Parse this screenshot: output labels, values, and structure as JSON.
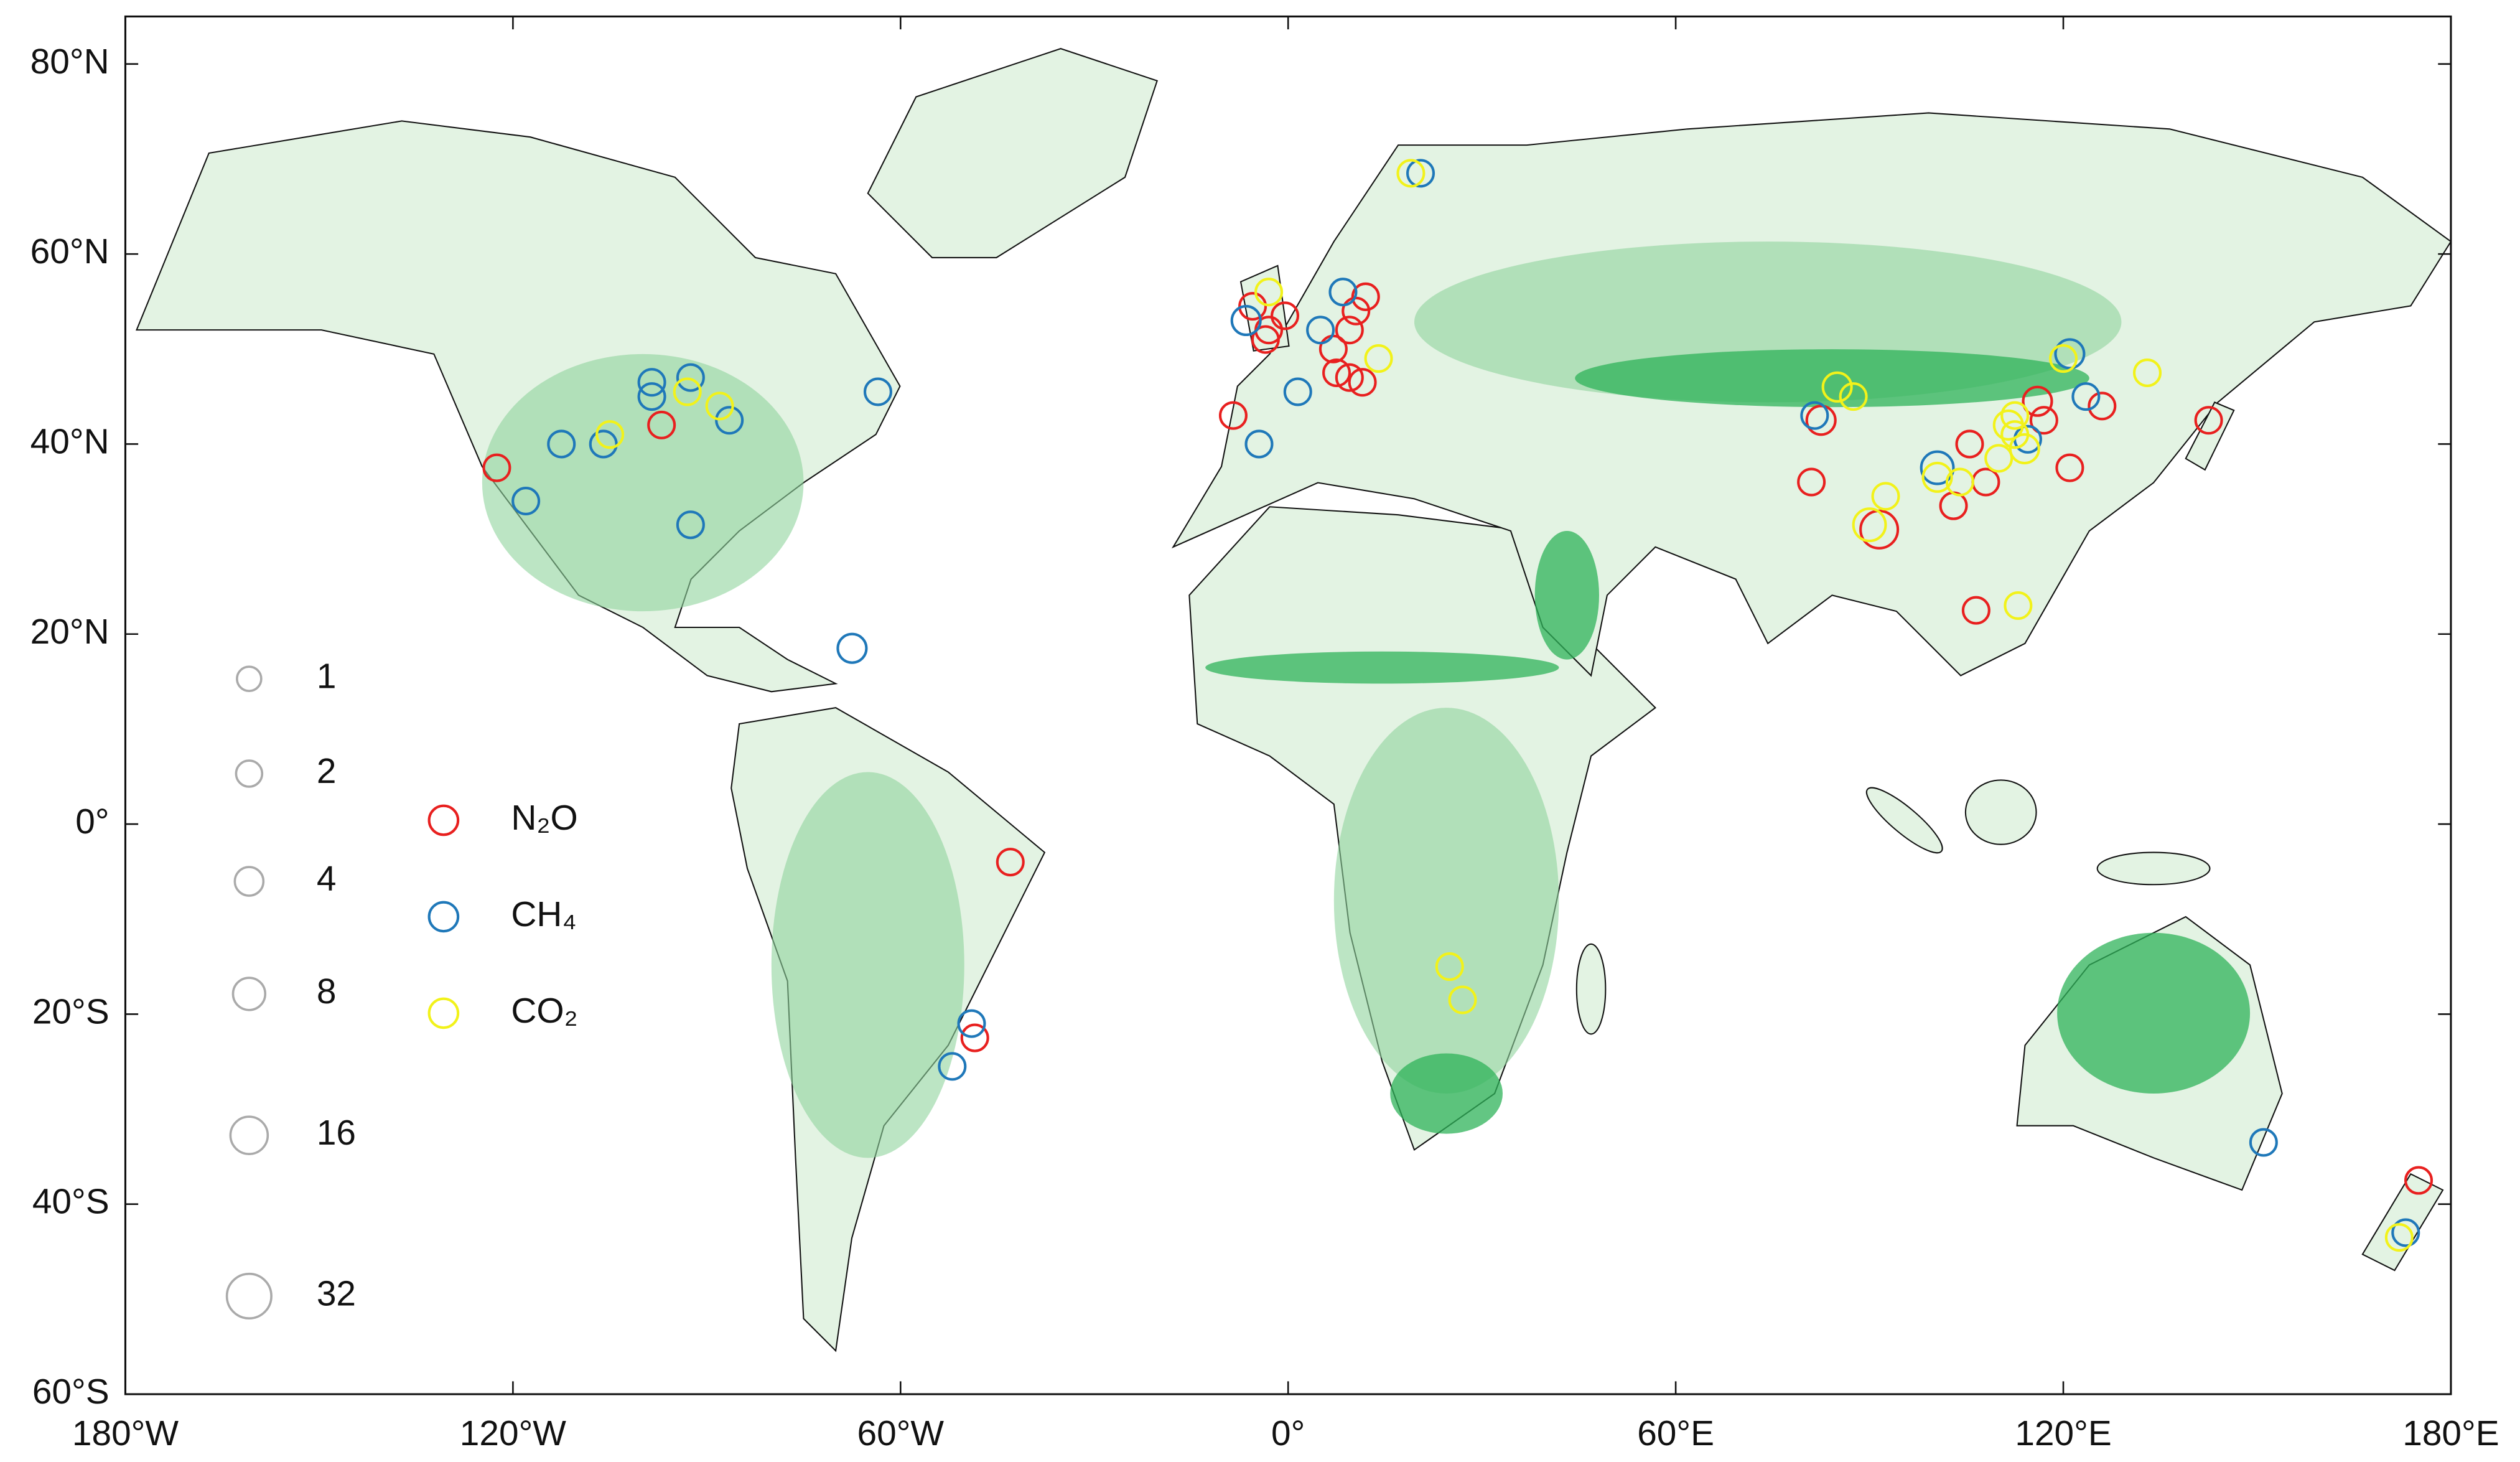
{
  "map": {
    "xlim": [
      -180,
      180
    ],
    "ylim": [
      -60,
      85
    ],
    "xticks": [
      {
        "value": -180,
        "label": "180°W"
      },
      {
        "value": -120,
        "label": "120°W"
      },
      {
        "value": -60,
        "label": "60°W"
      },
      {
        "value": 0,
        "label": "0°"
      },
      {
        "value": 60,
        "label": "60°E"
      },
      {
        "value": 120,
        "label": "120°E"
      },
      {
        "value": 180,
        "label": "180°E"
      }
    ],
    "yticks": [
      {
        "value": 80,
        "label": "80°N"
      },
      {
        "value": 60,
        "label": "60°N"
      },
      {
        "value": 40,
        "label": "40°N"
      },
      {
        "value": 20,
        "label": "20°N"
      },
      {
        "value": 0,
        "label": "0°"
      },
      {
        "value": -20,
        "label": "20°S"
      },
      {
        "value": -40,
        "label": "40°S"
      },
      {
        "value": -60,
        "label": "60°S"
      }
    ],
    "size_legend": [
      1,
      2,
      4,
      8,
      16,
      32
    ],
    "size_legend_color": "#aaaaaa",
    "series": [
      {
        "name": "N₂O",
        "color": "#e8201f",
        "lon": [
          -122.5,
          -97,
          -8.5,
          -43,
          -48.5,
          -5.5,
          -3,
          -0.5,
          -3.5,
          7,
          9.5,
          10.5,
          12,
          7.5,
          9.5,
          11.5,
          81,
          82.5,
          91.5,
          103,
          105.5,
          108,
          106.5,
          116,
          117,
          121,
          126,
          142.5,
          175
        ],
        "lat": [
          37.5,
          42,
          43,
          -4,
          -22.5,
          54.5,
          52,
          53.5,
          51,
          50,
          52,
          54,
          55.5,
          47.5,
          47,
          46.5,
          36,
          42.5,
          31,
          33.5,
          40,
          36,
          22.5,
          44.5,
          42.5,
          37.5,
          44,
          42.5,
          -37.5
        ],
        "n": [
          2,
          2,
          2,
          2,
          2,
          2,
          2,
          2,
          2,
          2,
          2,
          2,
          2,
          2,
          2,
          2,
          2,
          4,
          16,
          2,
          2,
          2,
          2,
          4,
          2,
          2,
          2,
          2,
          2
        ]
      },
      {
        "name": "CH₄",
        "color": "#1f78b9",
        "lon": [
          -118,
          -112.5,
          -106,
          -98.5,
          -98.5,
          -92.5,
          -86.5,
          -92.5,
          -63.5,
          -67.5,
          -49,
          -52,
          -4.5,
          1.5,
          -6.5,
          8.5,
          5,
          20.5,
          81.5,
          100.5,
          121,
          123.5,
          114.5,
          151,
          173
        ],
        "lat": [
          34,
          40,
          40,
          46.5,
          45,
          47,
          42.5,
          31.5,
          45.5,
          18.5,
          -21,
          -25.5,
          40,
          45.5,
          53,
          56,
          52,
          68.5,
          43,
          37.5,
          49.5,
          45,
          40.5,
          -33.5,
          -43
        ],
        "n": [
          2,
          2,
          2,
          2,
          2,
          2,
          2,
          2,
          2,
          4,
          2,
          2,
          2,
          2,
          4,
          2,
          2,
          2,
          2,
          8,
          4,
          2,
          2,
          2,
          2
        ]
      },
      {
        "name": "CO₂",
        "color": "#f2f21a",
        "lon": [
          -105,
          -93,
          -88,
          -3,
          14,
          19,
          85,
          87.5,
          90,
          92.5,
          100.5,
          104,
          111.5,
          112.5,
          112.5,
          114,
          110,
          120,
          133,
          113,
          25,
          27,
          172
        ],
        "lat": [
          41,
          45.5,
          44,
          56,
          49,
          68.5,
          46,
          45,
          31.5,
          34.5,
          36.5,
          36,
          42,
          41,
          43,
          39.5,
          38.5,
          49,
          47.5,
          23,
          -15,
          -18.5,
          -43.5
        ],
        "n": [
          2,
          2,
          2,
          2,
          2,
          2,
          4,
          2,
          8,
          2,
          4,
          2,
          4,
          2,
          2,
          4,
          2,
          2,
          2,
          2,
          2,
          2,
          2
        ]
      }
    ]
  }
}
